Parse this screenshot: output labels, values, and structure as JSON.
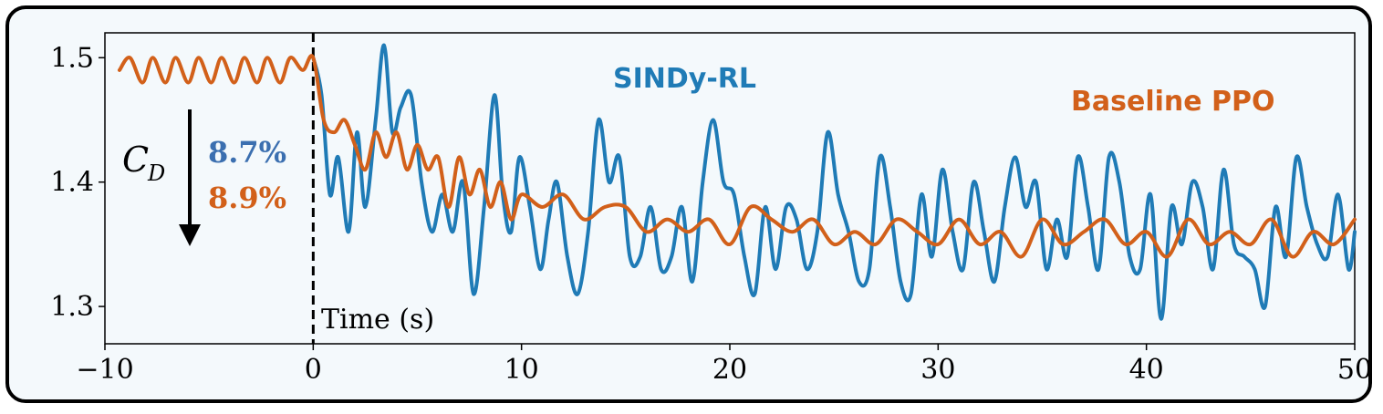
{
  "chart_data": {
    "type": "line",
    "xlabel": "Time (s)",
    "ylabel": "",
    "xlim": [
      -10,
      50
    ],
    "ylim": [
      1.27,
      1.52
    ],
    "x_ticks": [
      "−10",
      "0",
      "10",
      "20",
      "30",
      "40",
      "50"
    ],
    "y_ticks": [
      "1.3",
      "1.4",
      "1.5"
    ],
    "x_tick_values": [
      -10,
      0,
      10,
      20,
      30,
      40,
      50
    ],
    "y_tick_values": [
      1.3,
      1.4,
      1.5
    ],
    "vline_x": 0,
    "grid": false,
    "colors": {
      "sindy": "#1f7bb6",
      "ppo": "#d2601a",
      "pct_blue": "#3b6fb0"
    },
    "series": [
      {
        "name": "SINDy-RL",
        "x": [
          0,
          0.4,
          0.8,
          1.2,
          1.7,
          2.1,
          2.5,
          3.0,
          3.4,
          3.8,
          4.2,
          4.7,
          5.2,
          5.7,
          6.2,
          6.7,
          7.2,
          7.7,
          8.2,
          8.7,
          9.1,
          9.5,
          9.9,
          10.4,
          10.9,
          11.3,
          11.7,
          12.2,
          12.7,
          13.2,
          13.7,
          14.2,
          14.7,
          15.2,
          15.7,
          16.2,
          16.7,
          17.2,
          17.7,
          18.2,
          18.7,
          19.2,
          19.7,
          20.2,
          20.7,
          21.2,
          21.7,
          22.2,
          22.7,
          23.2,
          23.7,
          24.2,
          24.7,
          25.2,
          25.7,
          26.2,
          26.7,
          27.2,
          27.7,
          28.2,
          28.7,
          29.2,
          29.7,
          30.2,
          30.7,
          31.2,
          31.7,
          32.2,
          32.7,
          33.2,
          33.7,
          34.2,
          34.7,
          35.2,
          35.7,
          36.2,
          36.7,
          37.2,
          37.7,
          38.2,
          38.7,
          39.2,
          39.7,
          40.2,
          40.7,
          41.2,
          41.7,
          42.2,
          42.7,
          43.2,
          43.7,
          44.2,
          44.7,
          45.2,
          45.7,
          46.2,
          46.7,
          47.2,
          47.7,
          48.2,
          48.7,
          49.2,
          49.7,
          50.0
        ],
        "values": [
          1.5,
          1.47,
          1.39,
          1.42,
          1.36,
          1.44,
          1.38,
          1.45,
          1.51,
          1.44,
          1.46,
          1.47,
          1.4,
          1.36,
          1.39,
          1.36,
          1.4,
          1.31,
          1.38,
          1.47,
          1.39,
          1.36,
          1.42,
          1.38,
          1.33,
          1.37,
          1.4,
          1.34,
          1.31,
          1.36,
          1.45,
          1.4,
          1.42,
          1.34,
          1.34,
          1.38,
          1.33,
          1.34,
          1.38,
          1.32,
          1.4,
          1.45,
          1.4,
          1.39,
          1.34,
          1.31,
          1.38,
          1.33,
          1.38,
          1.37,
          1.33,
          1.36,
          1.44,
          1.39,
          1.36,
          1.32,
          1.33,
          1.42,
          1.38,
          1.32,
          1.31,
          1.39,
          1.34,
          1.41,
          1.36,
          1.33,
          1.4,
          1.36,
          1.32,
          1.38,
          1.42,
          1.38,
          1.4,
          1.33,
          1.37,
          1.34,
          1.42,
          1.38,
          1.33,
          1.42,
          1.4,
          1.34,
          1.33,
          1.39,
          1.29,
          1.38,
          1.35,
          1.4,
          1.38,
          1.33,
          1.41,
          1.35,
          1.34,
          1.33,
          1.3,
          1.38,
          1.34,
          1.42,
          1.38,
          1.35,
          1.34,
          1.39,
          1.33,
          1.36
        ]
      },
      {
        "name": "Baseline PPO",
        "x": [
          -9.3,
          -8.8,
          -8.2,
          -7.7,
          -7.1,
          -6.6,
          -6.0,
          -5.5,
          -4.9,
          -4.4,
          -3.8,
          -3.3,
          -2.7,
          -2.2,
          -1.6,
          -1.1,
          -0.5,
          0,
          0.5,
          1.0,
          1.5,
          2.0,
          2.5,
          3.0,
          3.5,
          4.0,
          4.5,
          5.0,
          5.5,
          6.0,
          6.5,
          7.0,
          7.5,
          8.0,
          8.5,
          9.0,
          9.5,
          10.0,
          11.0,
          12.0,
          13.0,
          14.0,
          15.0,
          16.0,
          17.0,
          18.0,
          19.0,
          20.0,
          21.0,
          22.0,
          23.0,
          24.0,
          25.0,
          26.0,
          27.0,
          28.0,
          29.0,
          30.0,
          31.0,
          32.0,
          33.0,
          34.0,
          35.0,
          36.0,
          37.0,
          38.0,
          39.0,
          40.0,
          41.0,
          42.0,
          43.0,
          44.0,
          45.0,
          46.0,
          47.0,
          48.0,
          49.0,
          50.0
        ],
        "values": [
          1.49,
          1.5,
          1.48,
          1.5,
          1.48,
          1.5,
          1.48,
          1.5,
          1.48,
          1.5,
          1.48,
          1.5,
          1.48,
          1.5,
          1.48,
          1.5,
          1.49,
          1.5,
          1.45,
          1.44,
          1.45,
          1.43,
          1.41,
          1.44,
          1.42,
          1.44,
          1.41,
          1.43,
          1.41,
          1.42,
          1.38,
          1.42,
          1.39,
          1.41,
          1.38,
          1.4,
          1.37,
          1.39,
          1.38,
          1.39,
          1.37,
          1.38,
          1.38,
          1.36,
          1.37,
          1.36,
          1.37,
          1.35,
          1.38,
          1.37,
          1.36,
          1.37,
          1.35,
          1.36,
          1.35,
          1.37,
          1.36,
          1.35,
          1.37,
          1.35,
          1.36,
          1.34,
          1.37,
          1.35,
          1.36,
          1.37,
          1.35,
          1.36,
          1.34,
          1.37,
          1.35,
          1.36,
          1.35,
          1.37,
          1.34,
          1.36,
          1.35,
          1.37
        ]
      }
    ],
    "labels": {
      "sindy": "SINDy-RL",
      "ppo": "Baseline PPO",
      "cd_main": "C",
      "cd_sub": "D",
      "pct_sindy": "8.7%",
      "pct_ppo": "8.9%"
    }
  }
}
